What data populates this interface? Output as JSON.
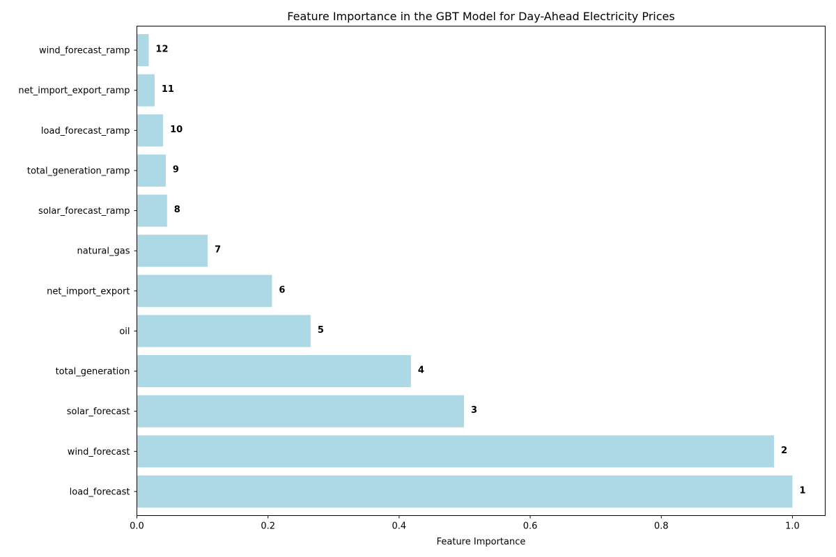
{
  "chart_data": {
    "type": "bar",
    "orientation": "horizontal",
    "title": "Feature Importance in the GBT Model for Day-Ahead Electricity Prices",
    "xlabel": "Feature Importance",
    "ylabel": "",
    "xlim": [
      0,
      1.05
    ],
    "xticks": [
      {
        "value": 0.0,
        "label": "0.0"
      },
      {
        "value": 0.2,
        "label": "0.2"
      },
      {
        "value": 0.4,
        "label": "0.4"
      },
      {
        "value": 0.6,
        "label": "0.6"
      },
      {
        "value": 0.8,
        "label": "0.8"
      },
      {
        "value": 1.0,
        "label": "1.0"
      }
    ],
    "categories": [
      "load_forecast",
      "wind_forecast",
      "solar_forecast",
      "total_generation",
      "oil",
      "net_import_export",
      "natural_gas",
      "solar_forecast_ramp",
      "total_generation_ramp",
      "load_forecast_ramp",
      "net_import_export_ramp",
      "wind_forecast_ramp"
    ],
    "values": [
      1.0,
      0.972,
      0.499,
      0.418,
      0.265,
      0.206,
      0.108,
      0.046,
      0.044,
      0.04,
      0.027,
      0.018
    ],
    "rank_labels": [
      "1",
      "2",
      "3",
      "4",
      "5",
      "6",
      "7",
      "8",
      "9",
      "10",
      "11",
      "12"
    ],
    "bar_color": "#add8e6",
    "grid": false,
    "legend": "none"
  }
}
